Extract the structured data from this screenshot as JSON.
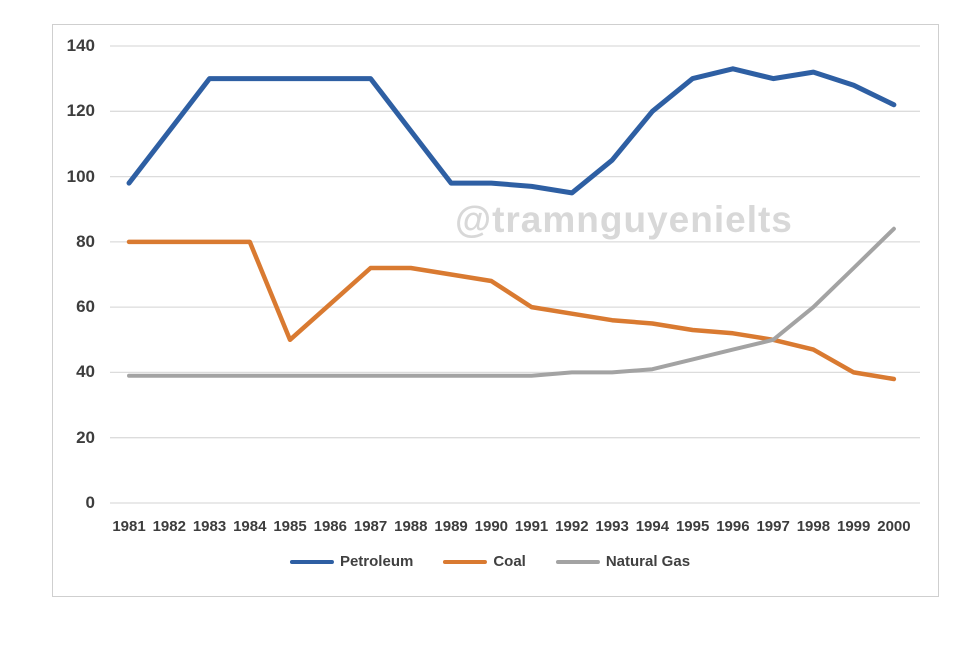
{
  "watermark": "@tramnguyenielts",
  "chart_data": {
    "type": "line",
    "title": "",
    "xlabel": "",
    "ylabel": "",
    "x": [
      1981,
      1982,
      1983,
      1984,
      1985,
      1986,
      1987,
      1988,
      1989,
      1990,
      1991,
      1992,
      1993,
      1994,
      1995,
      1996,
      1997,
      1998,
      1999,
      2000
    ],
    "series": [
      {
        "name": "Petroleum",
        "color": "#2e5fa3",
        "values": [
          98,
          114,
          130,
          130,
          130,
          130,
          130,
          114,
          98,
          98,
          97,
          95,
          105,
          120,
          130,
          133,
          130,
          132,
          128,
          122
        ]
      },
      {
        "name": "Coal",
        "color": "#d97a31",
        "values": [
          80,
          80,
          80,
          80,
          50,
          61,
          72,
          72,
          70,
          68,
          60,
          58,
          56,
          55,
          53,
          52,
          50,
          47,
          40,
          38
        ]
      },
      {
        "name": "Natural Gas",
        "color": "#a3a3a3",
        "values": [
          39,
          39,
          39,
          39,
          39,
          39,
          39,
          39,
          39,
          39,
          39,
          40,
          40,
          41,
          44,
          47,
          50,
          60,
          72,
          84
        ]
      }
    ],
    "ylim": [
      0,
      140
    ],
    "yticks": [
      0,
      20,
      40,
      60,
      80,
      100,
      120,
      140
    ],
    "grid": true,
    "gridline_color": "#dcdcdc",
    "axis_text_color": "#3d3d3d",
    "legend_position": "bottom"
  }
}
